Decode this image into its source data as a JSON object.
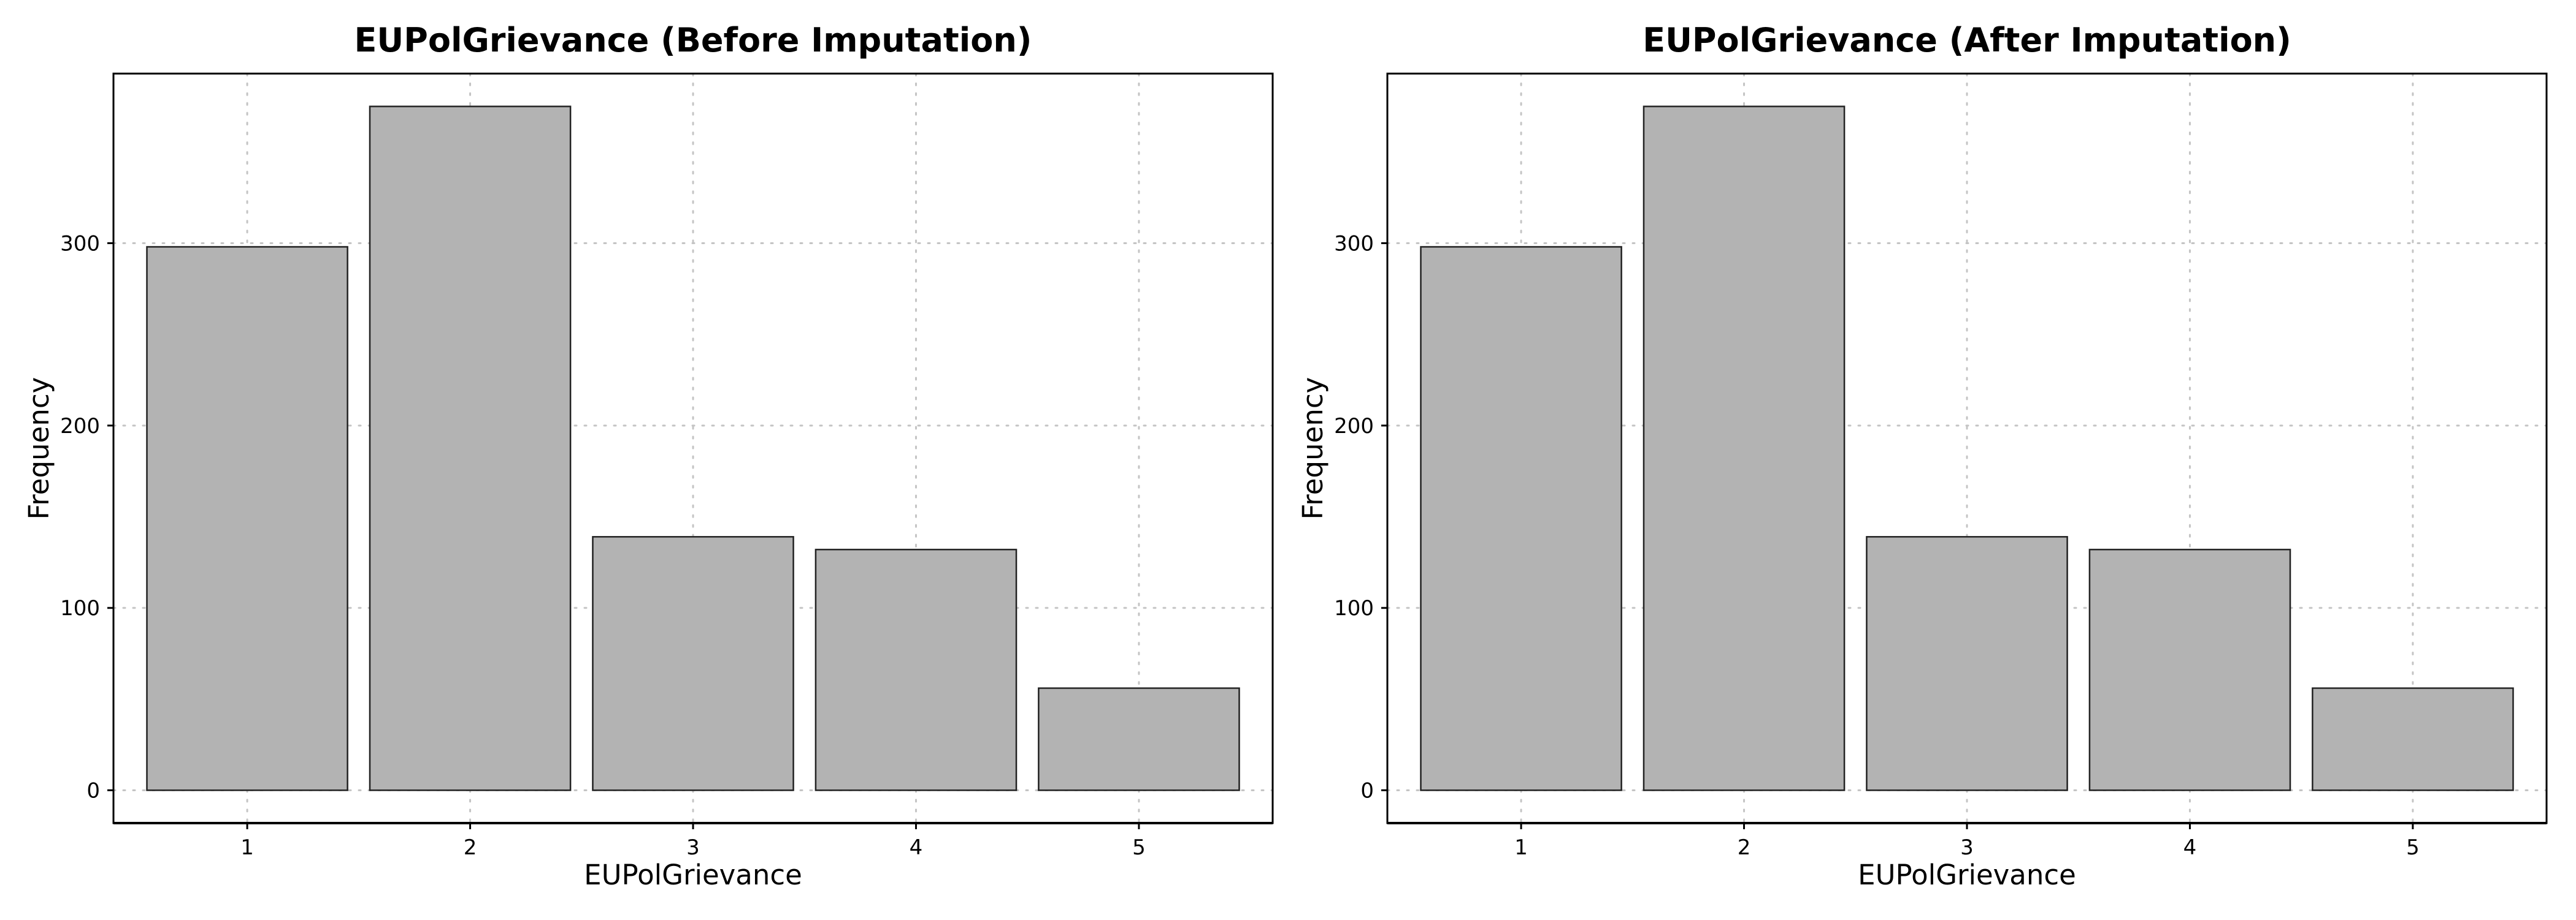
{
  "chart_data": [
    {
      "type": "bar",
      "title": "EUPolGrievance (Before Imputation)",
      "xlabel": "EUPolGrievance",
      "ylabel": "Frequency",
      "categories": [
        "1",
        "2",
        "3",
        "4",
        "5"
      ],
      "values": [
        298,
        375,
        139,
        132,
        56
      ],
      "yticks": [
        0,
        100,
        200,
        300
      ],
      "ylim": [
        -18,
        393
      ],
      "grid": true,
      "bar_color": "#b3b3b3"
    },
    {
      "type": "bar",
      "title": "EUPolGrievance (After Imputation)",
      "xlabel": "EUPolGrievance",
      "ylabel": "Frequency",
      "categories": [
        "1",
        "2",
        "3",
        "4",
        "5"
      ],
      "values": [
        298,
        375,
        139,
        132,
        56
      ],
      "yticks": [
        0,
        100,
        200,
        300
      ],
      "ylim": [
        -18,
        393
      ],
      "grid": true,
      "bar_color": "#b3b3b3"
    }
  ]
}
